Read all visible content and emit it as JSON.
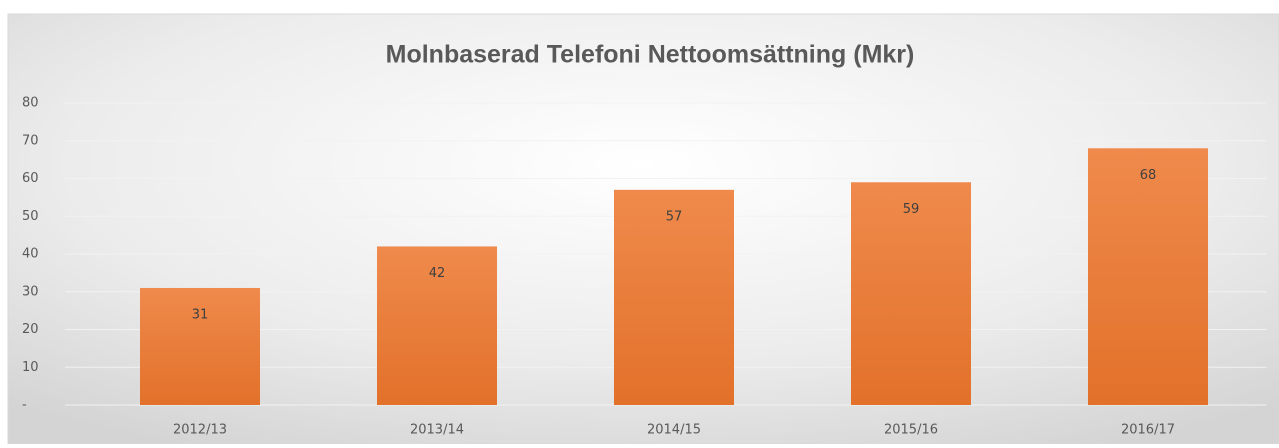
{
  "chart_data": {
    "type": "bar",
    "title": "Molnbaserad Telefoni Nettoomsättning (Mkr)",
    "categories": [
      "2012/13",
      "2013/14",
      "2014/15",
      "2015/16",
      "2016/17"
    ],
    "values": [
      31,
      42,
      57,
      59,
      68
    ],
    "color": "#ed7d31",
    "ylim": [
      0,
      80
    ],
    "yticks": [
      {
        "value": 0,
        "label": "-"
      },
      10,
      20,
      30,
      40,
      50,
      60,
      70,
      80
    ],
    "grid": true
  }
}
